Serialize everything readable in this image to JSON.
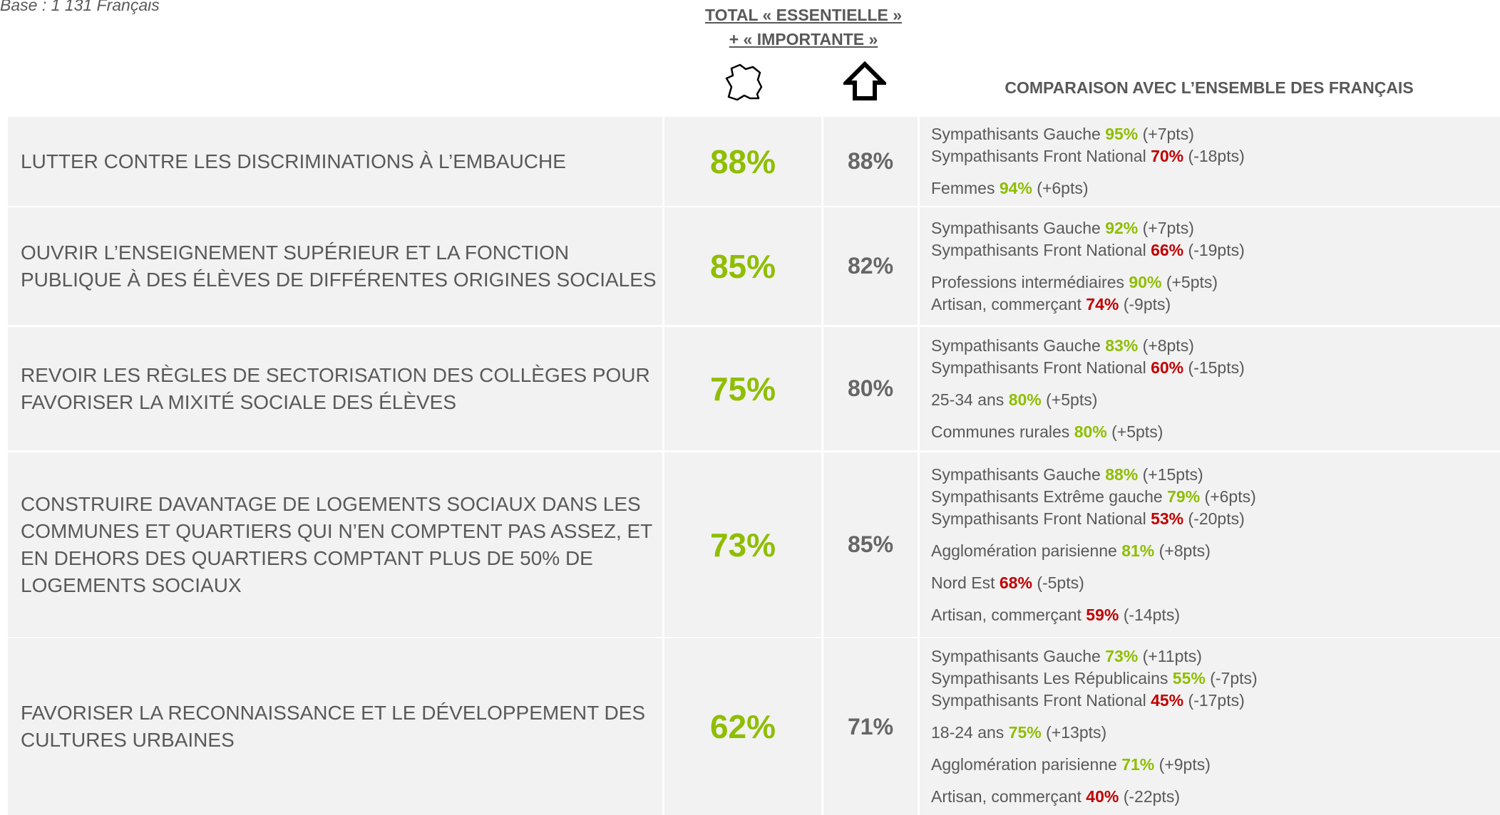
{
  "base": "Base : 1 131 Français",
  "header": {
    "total_line1": "TOTAL « ESSENTIELLE »",
    "total_line2": "+ « IMPORTANTE »",
    "comparison": "COMPARAISON AVEC L’ENSEMBLE DES FRANÇAIS"
  },
  "rows": [
    {
      "label": "LUTTER CONTRE LES DISCRIMINATIONS À L’EMBAUCHE",
      "france": "88%",
      "house": "88%",
      "comparisons": [
        [
          {
            "segment": "Sympathisants Gauche",
            "value": "95%",
            "diff": "(+7pts)",
            "color": "#8fbe00"
          },
          {
            "segment": "Sympathisants Front National",
            "value": "70%",
            "diff": "(-18pts)",
            "color": "#c00000"
          }
        ],
        [
          {
            "segment": "Femmes",
            "value": "94%",
            "diff": "(+6pts)",
            "color": "#8fbe00"
          }
        ]
      ]
    },
    {
      "label": "OUVRIR L’ENSEIGNEMENT SUPÉRIEUR ET LA FONCTION PUBLIQUE À DES ÉLÈVES DE DIFFÉRENTES ORIGINES SOCIALES",
      "france": "85%",
      "house": "82%",
      "comparisons": [
        [
          {
            "segment": "Sympathisants Gauche",
            "value": "92%",
            "diff": "(+7pts)",
            "color": "#8fbe00"
          },
          {
            "segment": "Sympathisants Front National",
            "value": "66%",
            "diff": "(-19pts)",
            "color": "#c00000"
          }
        ],
        [
          {
            "segment": "Professions intermédiaires",
            "value": "90%",
            "diff": "(+5pts)",
            "color": "#8fbe00"
          },
          {
            "segment": "Artisan, commerçant",
            "value": "74%",
            "diff": "(-9pts)",
            "color": "#c00000"
          }
        ]
      ]
    },
    {
      "label": "REVOIR LES RÈGLES DE SECTORISATION DES COLLÈGES POUR FAVORISER LA MIXITÉ SOCIALE DES ÉLÈVES",
      "france": "75%",
      "house": "80%",
      "comparisons": [
        [
          {
            "segment": "Sympathisants Gauche",
            "value": "83%",
            "diff": "(+8pts)",
            "color": "#8fbe00"
          },
          {
            "segment": "Sympathisants Front National",
            "value": "60%",
            "diff": "(-15pts)",
            "color": "#c00000"
          }
        ],
        [
          {
            "segment": "25-34 ans",
            "value": "80%",
            "diff": "(+5pts)",
            "color": "#8fbe00"
          }
        ],
        [
          {
            "segment": "Communes rurales",
            "value": "80%",
            "diff": "(+5pts)",
            "color": "#8fbe00"
          }
        ]
      ]
    },
    {
      "label": "CONSTRUIRE DAVANTAGE DE LOGEMENTS SOCIAUX DANS LES COMMUNES ET QUARTIERS QUI N’EN COMPTENT PAS ASSEZ, ET EN DEHORS DES QUARTIERS COMPTANT PLUS DE 50% DE LOGEMENTS SOCIAUX",
      "france": "73%",
      "house": "85%",
      "comparisons": [
        [
          {
            "segment": "Sympathisants Gauche",
            "value": "88%",
            "diff": "(+15pts)",
            "color": "#8fbe00"
          },
          {
            "segment": "Sympathisants Extrême gauche",
            "value": "79%",
            "diff": "(+6pts)",
            "color": "#8fbe00"
          },
          {
            "segment": "Sympathisants Front National",
            "value": "53%",
            "diff": "(-20pts)",
            "color": "#c00000"
          }
        ],
        [
          {
            "segment": "Agglomération parisienne",
            "value": "81%",
            "diff": "(+8pts)",
            "color": "#8fbe00"
          }
        ],
        [
          {
            "segment": "Nord Est",
            "value": "68%",
            "diff": "(-5pts)",
            "color": "#c00000"
          }
        ],
        [
          {
            "segment": "Artisan, commerçant",
            "value": "59%",
            "diff": "(-14pts)",
            "color": "#c00000"
          }
        ]
      ]
    },
    {
      "label": "FAVORISER LA RECONNAISSANCE ET LE DÉVELOPPEMENT DES CULTURES URBAINES",
      "france": "62%",
      "house": "71%",
      "comparisons": [
        [
          {
            "segment": "Sympathisants Gauche",
            "value": "73%",
            "diff": "(+11pts)",
            "color": "#8fbe00"
          },
          {
            "segment": "Sympathisants Les Républicains",
            "value": "55%",
            "diff": "(-7pts)",
            "color": "#8fbe00"
          },
          {
            "segment": "Sympathisants Front National",
            "value": "45%",
            "diff": "(-17pts)",
            "color": "#c00000"
          }
        ],
        [
          {
            "segment": "18-24 ans",
            "value": "75%",
            "diff": "(+13pts)",
            "color": "#8fbe00"
          }
        ],
        [
          {
            "segment": "Agglomération parisienne",
            "value": "71%",
            "diff": "(+9pts)",
            "color": "#8fbe00"
          }
        ],
        [
          {
            "segment": "Artisan, commerçant",
            "value": "40%",
            "diff": "(-22pts)",
            "color": "#c00000"
          }
        ]
      ]
    }
  ]
}
